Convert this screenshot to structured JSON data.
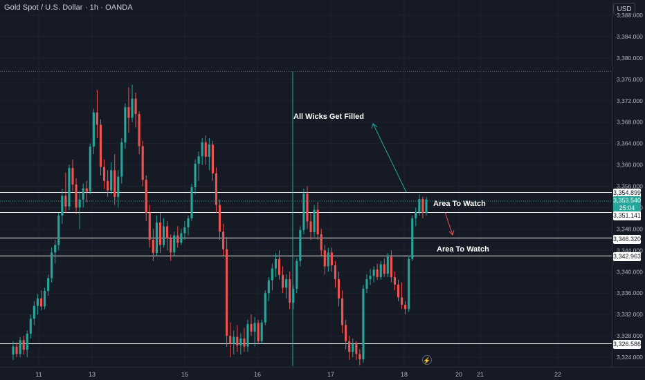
{
  "symbol_title": "Gold Spot / U.S. Dollar · 1h · OANDA",
  "currency_button": "USD",
  "notes": {
    "wicks": "All Wicks Get Filled",
    "watch_upper": "Area To Watch",
    "watch_lower": "Area To Watch"
  },
  "price_axis": {
    "ticks": [
      "3,388.000",
      "3,384.000",
      "3,380.000",
      "3,376.000",
      "3,372.000",
      "3,368.000",
      "3,364.000",
      "3,360.000",
      "3,356.000",
      "3,352.000",
      "3,348.000",
      "3,344.000",
      "3,340.000",
      "3,336.000",
      "3,332.000",
      "3,328.000",
      "3,324.000"
    ]
  },
  "time_axis": {
    "ticks": [
      "11",
      "13",
      "15",
      "16",
      "17",
      "18",
      "20",
      "21",
      "22"
    ]
  },
  "level_tags": [
    {
      "value": "3,354.899",
      "style": "white"
    },
    {
      "value": "3,353.540",
      "style": "green"
    },
    {
      "value": "3,351.141",
      "style": "white"
    },
    {
      "value": "3,346.320",
      "style": "white"
    },
    {
      "value": "3,342.963",
      "style": "white"
    },
    {
      "value": "3,326.586",
      "style": "white"
    }
  ],
  "countdown": "25:04",
  "colors": {
    "background": "#161a25",
    "up": "#26a69a",
    "down": "#ef5350",
    "grid": "#1f2330",
    "axis_text": "#b2b5be"
  },
  "icons": {
    "alert": "lightning-icon"
  },
  "chart_data": {
    "type": "candlestick",
    "title": "Gold Spot / U.S. Dollar · 1h · OANDA",
    "ylim": [
      3322.5,
      3389.5
    ],
    "horizontal_levels": [
      3354.899,
      3351.141,
      3346.32,
      3342.963,
      3326.586
    ],
    "last_price": 3353.54,
    "candles": [
      [
        3324.5,
        3327.0,
        3323.5,
        3326.0
      ],
      [
        3326.0,
        3326.8,
        3324.0,
        3324.6
      ],
      [
        3324.6,
        3327.8,
        3324.0,
        3327.2
      ],
      [
        3327.2,
        3328.0,
        3324.5,
        3325.4
      ],
      [
        3325.4,
        3329.0,
        3324.0,
        3328.4
      ],
      [
        3328.4,
        3332.0,
        3327.5,
        3331.2
      ],
      [
        3331.2,
        3334.5,
        3330.0,
        3333.6
      ],
      [
        3333.6,
        3335.8,
        3332.0,
        3335.0
      ],
      [
        3335.0,
        3336.5,
        3332.8,
        3333.5
      ],
      [
        3333.5,
        3337.0,
        3333.0,
        3336.4
      ],
      [
        3336.4,
        3339.5,
        3335.5,
        3338.8
      ],
      [
        3338.8,
        3344.5,
        3338.0,
        3343.6
      ],
      [
        3343.6,
        3346.0,
        3341.5,
        3345.0
      ],
      [
        3345.0,
        3351.0,
        3344.0,
        3350.5
      ],
      [
        3350.5,
        3355.5,
        3349.0,
        3354.2
      ],
      [
        3354.2,
        3358.5,
        3351.0,
        3352.2
      ],
      [
        3352.2,
        3360.0,
        3351.5,
        3359.4
      ],
      [
        3359.4,
        3361.0,
        3355.0,
        3356.3
      ],
      [
        3356.3,
        3357.5,
        3350.8,
        3352.0
      ],
      [
        3352.0,
        3355.0,
        3348.0,
        3353.5
      ],
      [
        3353.5,
        3356.5,
        3352.0,
        3355.6
      ],
      [
        3355.6,
        3357.0,
        3353.0,
        3355.0
      ],
      [
        3355.0,
        3364.0,
        3354.5,
        3363.4
      ],
      [
        3363.4,
        3370.5,
        3362.0,
        3369.8
      ],
      [
        3369.8,
        3374.0,
        3365.0,
        3367.5
      ],
      [
        3367.5,
        3368.5,
        3358.0,
        3359.6
      ],
      [
        3359.6,
        3361.0,
        3355.5,
        3357.0
      ],
      [
        3357.0,
        3359.0,
        3354.0,
        3355.2
      ],
      [
        3355.2,
        3360.5,
        3354.5,
        3359.0
      ],
      [
        3359.0,
        3362.0,
        3352.5,
        3354.0
      ],
      [
        3354.0,
        3359.0,
        3352.0,
        3357.8
      ],
      [
        3357.8,
        3365.0,
        3356.5,
        3364.2
      ],
      [
        3364.2,
        3371.5,
        3363.0,
        3370.8
      ],
      [
        3370.8,
        3374.5,
        3366.0,
        3368.8
      ],
      [
        3368.8,
        3375.0,
        3368.0,
        3372.4
      ],
      [
        3372.4,
        3373.5,
        3367.0,
        3369.5
      ],
      [
        3369.5,
        3370.0,
        3362.0,
        3363.5
      ],
      [
        3363.5,
        3364.5,
        3356.0,
        3357.2
      ],
      [
        3357.2,
        3358.0,
        3349.5,
        3351.0
      ],
      [
        3351.0,
        3352.5,
        3344.5,
        3346.0
      ],
      [
        3346.0,
        3348.0,
        3342.0,
        3343.5
      ],
      [
        3343.5,
        3350.5,
        3343.0,
        3349.2
      ],
      [
        3349.2,
        3351.0,
        3343.5,
        3345.0
      ],
      [
        3345.0,
        3350.0,
        3344.5,
        3348.5
      ],
      [
        3348.5,
        3349.5,
        3344.0,
        3346.2
      ],
      [
        3346.2,
        3347.0,
        3342.0,
        3343.6
      ],
      [
        3343.6,
        3347.5,
        3343.0,
        3346.8
      ],
      [
        3346.8,
        3348.5,
        3344.5,
        3345.4
      ],
      [
        3345.4,
        3348.0,
        3345.0,
        3347.2
      ],
      [
        3347.2,
        3349.5,
        3346.0,
        3348.3
      ],
      [
        3348.3,
        3350.5,
        3346.8,
        3350.0
      ],
      [
        3350.0,
        3356.5,
        3349.5,
        3355.8
      ],
      [
        3355.8,
        3361.0,
        3354.5,
        3360.2
      ],
      [
        3360.2,
        3362.5,
        3357.0,
        3361.6
      ],
      [
        3361.6,
        3365.0,
        3360.0,
        3364.2
      ],
      [
        3364.2,
        3365.5,
        3360.0,
        3361.5
      ],
      [
        3361.5,
        3365.0,
        3359.0,
        3363.8
      ],
      [
        3363.8,
        3364.5,
        3357.0,
        3358.4
      ],
      [
        3358.4,
        3359.5,
        3351.0,
        3352.5
      ],
      [
        3352.5,
        3353.5,
        3346.0,
        3347.5
      ],
      [
        3347.5,
        3349.0,
        3343.0,
        3344.2
      ],
      [
        3344.2,
        3346.5,
        3326.0,
        3328.0
      ],
      [
        3328.0,
        3330.5,
        3324.0,
        3326.5
      ],
      [
        3326.5,
        3329.0,
        3324.5,
        3327.8
      ],
      [
        3327.8,
        3330.0,
        3325.0,
        3326.2
      ],
      [
        3326.2,
        3328.5,
        3324.5,
        3327.5
      ],
      [
        3327.5,
        3329.5,
        3325.0,
        3326.0
      ],
      [
        3326.0,
        3331.0,
        3325.0,
        3330.2
      ],
      [
        3330.2,
        3332.0,
        3328.0,
        3328.8
      ],
      [
        3328.8,
        3331.5,
        3326.0,
        3330.4
      ],
      [
        3330.4,
        3331.0,
        3326.5,
        3327.0
      ],
      [
        3327.0,
        3331.0,
        3326.5,
        3330.5
      ],
      [
        3330.5,
        3336.5,
        3330.0,
        3336.0
      ],
      [
        3336.0,
        3339.0,
        3334.5,
        3338.4
      ],
      [
        3338.4,
        3341.5,
        3336.5,
        3340.6
      ],
      [
        3340.6,
        3343.5,
        3339.0,
        3342.4
      ],
      [
        3342.4,
        3344.0,
        3338.5,
        3339.4
      ],
      [
        3339.4,
        3341.0,
        3336.0,
        3337.0
      ],
      [
        3337.0,
        3339.5,
        3335.0,
        3338.6
      ],
      [
        3338.6,
        3340.0,
        3333.0,
        3334.2
      ],
      [
        3334.2,
        3337.5,
        3333.0,
        3336.8
      ],
      [
        3336.8,
        3342.5,
        3336.0,
        3342.0
      ],
      [
        3342.0,
        3348.5,
        3341.0,
        3347.8
      ],
      [
        3347.8,
        3355.5,
        3347.0,
        3354.6
      ],
      [
        3354.6,
        3356.0,
        3348.0,
        3349.4
      ],
      [
        3349.4,
        3351.0,
        3346.0,
        3347.4
      ],
      [
        3347.4,
        3352.5,
        3346.5,
        3351.6
      ],
      [
        3351.6,
        3353.0,
        3346.0,
        3347.0
      ],
      [
        3347.0,
        3348.0,
        3343.0,
        3344.0
      ],
      [
        3344.0,
        3345.0,
        3339.5,
        3341.0
      ],
      [
        3341.0,
        3344.5,
        3340.0,
        3343.6
      ],
      [
        3343.6,
        3344.5,
        3340.0,
        3341.2
      ],
      [
        3341.2,
        3342.0,
        3337.0,
        3338.6
      ],
      [
        3338.6,
        3340.0,
        3333.5,
        3335.0
      ],
      [
        3335.0,
        3336.5,
        3328.5,
        3330.0
      ],
      [
        3330.0,
        3331.0,
        3325.5,
        3327.0
      ],
      [
        3327.0,
        3328.0,
        3323.5,
        3325.0
      ],
      [
        3325.0,
        3327.5,
        3324.0,
        3326.5
      ],
      [
        3326.5,
        3327.0,
        3323.5,
        3324.6
      ],
      [
        3324.6,
        3325.5,
        3322.5,
        3323.6
      ],
      [
        3323.6,
        3337.5,
        3323.0,
        3336.8
      ],
      [
        3336.8,
        3339.5,
        3336.0,
        3338.6
      ],
      [
        3338.6,
        3340.5,
        3337.5,
        3339.2
      ],
      [
        3339.2,
        3341.0,
        3338.0,
        3340.4
      ],
      [
        3340.4,
        3341.5,
        3338.5,
        3339.0
      ],
      [
        3339.0,
        3342.0,
        3338.5,
        3341.4
      ],
      [
        3341.4,
        3342.5,
        3339.0,
        3339.6
      ],
      [
        3339.6,
        3343.5,
        3339.0,
        3342.8
      ],
      [
        3342.8,
        3344.0,
        3338.0,
        3339.0
      ],
      [
        3339.0,
        3340.0,
        3336.5,
        3337.6
      ],
      [
        3337.6,
        3338.5,
        3334.5,
        3335.2
      ],
      [
        3335.2,
        3338.0,
        3333.0,
        3333.8
      ],
      [
        3333.8,
        3334.5,
        3332.0,
        3333.0
      ],
      [
        3333.0,
        3343.0,
        3332.5,
        3342.4
      ],
      [
        3342.4,
        3350.5,
        3342.0,
        3350.0
      ],
      [
        3350.0,
        3352.0,
        3348.5,
        3351.2
      ],
      [
        3351.2,
        3354.5,
        3350.5,
        3353.6
      ],
      [
        3353.6,
        3354.0,
        3350.0,
        3351.0
      ],
      [
        3351.0,
        3354.0,
        3350.5,
        3353.5
      ]
    ]
  }
}
